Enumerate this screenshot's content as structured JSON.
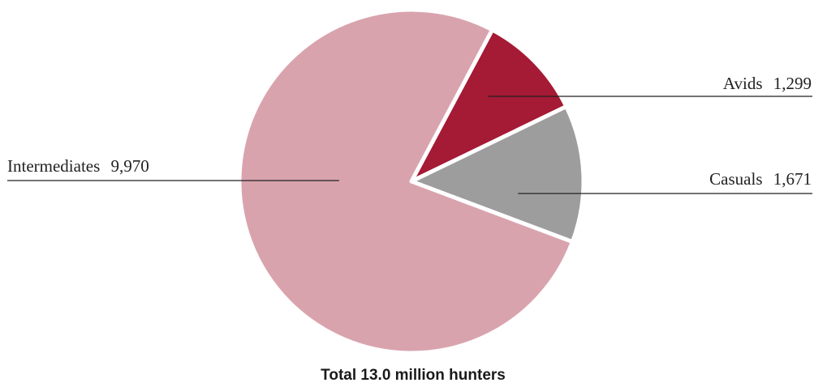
{
  "chart_data": {
    "type": "pie",
    "title": "",
    "caption": "Total 13.0 million hunters",
    "start_angle_deg": 28,
    "direction": "clockwise",
    "legend": "none",
    "slices": [
      {
        "name": "Avids",
        "value": 1299,
        "value_label": "1,299",
        "color": "#a51a35"
      },
      {
        "name": "Casuals",
        "value": 1671,
        "value_label": "1,671",
        "color": "#9d9d9d"
      },
      {
        "name": "Intermediates",
        "value": 9970,
        "value_label": "9,970",
        "color": "#d9a3ae"
      }
    ]
  }
}
